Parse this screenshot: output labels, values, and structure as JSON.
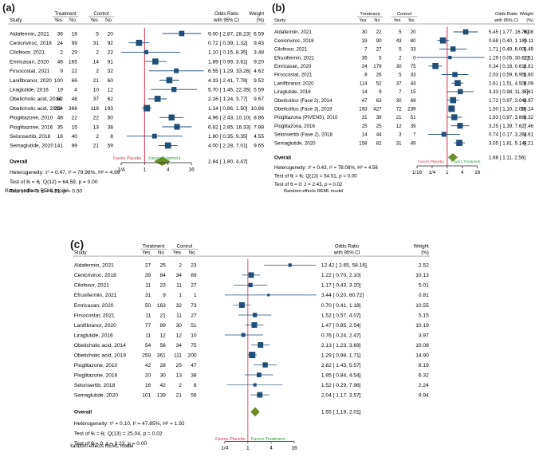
{
  "labels": {
    "study": "Study",
    "treatment": "Treatment",
    "control": "Control",
    "yes": "Yes",
    "no": "No",
    "odds_ratio": "Odds Ratio",
    "with_ci": "with 95% CI",
    "weight": "Weight",
    "weight_unit": "(%)",
    "overall": "Overall",
    "favors_placebo": "Favors Placebo",
    "favors_treatment": "Favors Treatment",
    "model": "Random-effects REML model"
  },
  "colors": {
    "box": "#1f4e79",
    "diamond": "#6b8e23",
    "null_line": "#d9304a",
    "placebo_text": "#d9304a",
    "treatment_text": "#2e9b3a"
  },
  "chart_data": [
    {
      "panel": "(a)",
      "type": "forest",
      "x_scale": "log",
      "xticks": [
        0.25,
        1,
        4,
        16
      ],
      "xtick_labels": [
        "1/4",
        "1",
        "4",
        "16"
      ],
      "xlim": [
        0.25,
        34
      ],
      "studies": [
        {
          "study": "Aldafermin, 2021",
          "t_yes": 36,
          "t_no": 16,
          "c_yes": 5,
          "c_no": 20,
          "or": 9.0,
          "lo": 2.87,
          "hi": 28.23,
          "or_text": "9.00 [ 2.87, 28.23]",
          "weight": "6.59"
        },
        {
          "study": "Cenicriviroc, 2018",
          "t_yes": 24,
          "t_no": 99,
          "c_yes": 31,
          "c_no": 92,
          "or": 0.72,
          "lo": 0.39,
          "hi": 1.32,
          "or_text": "0.72 [ 0.39, 1.32]",
          "weight": "9.43"
        },
        {
          "study": "Cilofexor, 2021",
          "t_yes": 2,
          "t_no": 29,
          "c_yes": 2,
          "c_no": 22,
          "or": 1.1,
          "lo": 0.15,
          "hi": 8.35,
          "or_text": "1.10 [ 0.15, 8.35]",
          "weight": "3.48"
        },
        {
          "study": "Emricasan, 2020",
          "t_yes": 48,
          "t_no": 165,
          "c_yes": 14,
          "c_no": 91,
          "or": 1.89,
          "lo": 0.99,
          "hi": 3.61,
          "or_text": "1.89 [ 0.99, 3.61]",
          "weight": "9.20"
        },
        {
          "study": "Firsocostat, 2021",
          "t_yes": 9,
          "t_no": 22,
          "c_yes": 2,
          "c_no": 32,
          "or": 6.55,
          "lo": 1.29,
          "hi": 33.26,
          "or_text": "6.55 [ 1.29, 33.26]",
          "weight": "4.62"
        },
        {
          "study": "Lanifibranor, 2020",
          "t_yes": 100,
          "t_no": 66,
          "c_yes": 21,
          "c_no": 60,
          "or": 4.33,
          "lo": 2.41,
          "hi": 7.78,
          "or_text": "4.33 [ 2.41, 7.78]",
          "weight": "9.52"
        },
        {
          "study": "Liraglutide, 2016",
          "t_yes": 19,
          "t_no": 4,
          "c_yes": 10,
          "c_no": 12,
          "or": 5.7,
          "lo": 1.45,
          "hi": 22.35,
          "or_text": "5.70 [ 1.45, 22.35]",
          "weight": "5.59"
        },
        {
          "study": "Obeticholic acid, 2014",
          "t_yes": 62,
          "t_no": 48,
          "c_yes": 37,
          "c_no": 62,
          "or": 2.16,
          "lo": 1.24,
          "hi": 3.77,
          "or_text": "2.16 [ 1.24, 3.77]",
          "weight": "9.67"
        },
        {
          "study": "Obeticholic acid, 2019",
          "t_yes": 254,
          "t_no": 366,
          "c_yes": 118,
          "c_no": 193,
          "or": 1.14,
          "lo": 0.86,
          "hi": 1.5,
          "or_text": "1.14 [ 0.86, 1.50]",
          "weight": "10.86"
        },
        {
          "study": "Pioglitazone, 2010",
          "t_yes": 48,
          "t_no": 22,
          "c_yes": 22,
          "c_no": 50,
          "or": 4.96,
          "lo": 2.43,
          "hi": 10.1,
          "or_text": "4.96 [ 2.43, 10.10]",
          "weight": "8.86"
        },
        {
          "study": "Pioglitazone, 2016",
          "t_yes": 35,
          "t_no": 15,
          "c_yes": 13,
          "c_no": 38,
          "or": 6.82,
          "lo": 2.85,
          "hi": 16.33,
          "or_text": "6.82 [ 2.85, 16.33]",
          "weight": "7.98"
        },
        {
          "study": "Selonsertib, 2018",
          "t_yes": 18,
          "t_no": 40,
          "c_yes": 2,
          "c_no": 8,
          "or": 1.8,
          "lo": 0.35,
          "hi": 9.35,
          "or_text": "1.80 [ 0.35, 9.35]",
          "weight": "4.55"
        },
        {
          "study": "Semaglutide, 2020",
          "t_yes": 141,
          "t_no": 99,
          "c_yes": 21,
          "c_no": 59,
          "or": 4.0,
          "lo": 2.28,
          "hi": 7.01,
          "or_text": "4.00 [ 2.28, 7.01]",
          "weight": "9.65"
        }
      ],
      "overall": {
        "or": 2.84,
        "lo": 1.8,
        "hi": 4.47,
        "or_text": "2.84 [ 1.80, 4.47]"
      },
      "heterogeneity": "Heterogeneity: τ² = 0.47, I² = 79.98%, H² = 4.99",
      "test_theta_i": "Test of θᵢ = θⱼ: Q(12) = 64.59, p = 0.00",
      "test_theta_0": "Test of θ = 0: z = 4.51, p = 0.00"
    },
    {
      "panel": "(b)",
      "type": "forest",
      "x_scale": "log",
      "xticks": [
        0.0625,
        0.25,
        1,
        4,
        16
      ],
      "xtick_labels": [
        "1/16",
        "1/4",
        "1",
        "4",
        "16"
      ],
      "xlim": [
        0.0625,
        34
      ],
      "studies": [
        {
          "study": "Aldafermin, 2021",
          "t_yes": 30,
          "t_no": 22,
          "c_yes": 5,
          "c_no": 20,
          "or": 5.45,
          "lo": 1.77,
          "hi": 16.78,
          "or_text": "5.45 [ 1.77, 16.78]",
          "weight": "6.08"
        },
        {
          "study": "Cenicriviroc, 2018",
          "t_yes": 33,
          "t_no": 90,
          "c_yes": 43,
          "c_no": 80,
          "or": 0.68,
          "lo": 0.4,
          "hi": 1.18,
          "or_text": "0.68 [ 0.40, 1.18]",
          "weight": "9.11"
        },
        {
          "study": "Cilofexor, 2021",
          "t_yes": 7,
          "t_no": 27,
          "c_yes": 5,
          "c_no": 33,
          "or": 1.71,
          "lo": 0.49,
          "hi": 6.0,
          "or_text": "1.71 [ 0.49, 6.00]",
          "weight": "5.49"
        },
        {
          "study": "Efruxifermin, 2021",
          "t_yes": 35,
          "t_no": 5,
          "c_yes": 2,
          "c_no": 0,
          "or": 1.29,
          "lo": 0.05,
          "hi": 30.62,
          "or_text": "1.29 [ 0.05, 30.62]",
          "weight": "1.51"
        },
        {
          "study": "Emricasan, 2020",
          "t_yes": 24,
          "t_no": 179,
          "c_yes": 30,
          "c_no": 75,
          "or": 0.34,
          "lo": 0.18,
          "hi": 0.61,
          "or_text": "0.34 [ 0.18, 0.61]",
          "weight": "8.81"
        },
        {
          "study": "Firsocostat, 2021",
          "t_yes": 8,
          "t_no": 26,
          "c_yes": 5,
          "c_no": 33,
          "or": 2.03,
          "lo": 0.59,
          "hi": 6.95,
          "or_text": "2.03 [ 0.59, 6.95]",
          "weight": "5.60"
        },
        {
          "study": "Lanifibranor, 2020",
          "t_yes": 114,
          "t_no": 52,
          "c_yes": 37,
          "c_no": 44,
          "or": 2.61,
          "lo": 1.51,
          "hi": 4.5,
          "or_text": "2.61 [ 1.51, 4.50]",
          "weight": "9.09"
        },
        {
          "study": "Liraglutide, 2016",
          "t_yes": 14,
          "t_no": 9,
          "c_yes": 7,
          "c_no": 15,
          "or": 3.33,
          "lo": 0.98,
          "hi": 11.37,
          "or_text": "3.33 [ 0.98, 11.37]",
          "weight": "5.61"
        },
        {
          "study": "Obeticólico (Fase 2), 2014",
          "t_yes": 47,
          "t_no": 63,
          "c_yes": 30,
          "c_no": 69,
          "or": 1.72,
          "lo": 0.97,
          "hi": 3.04,
          "or_text": "1.72 [ 0.97, 3.04]",
          "weight": "8.97"
        },
        {
          "study": "Obeticólico (Fase 3), 2019",
          "t_yes": 193,
          "t_no": 427,
          "c_yes": 72,
          "c_no": 239,
          "or": 1.5,
          "lo": 1.1,
          "hi": 2.05,
          "or_text": "1.50 [ 1.10, 2.05]",
          "weight": "10.14"
        },
        {
          "study": "Pioglitazona (PIVENS), 2010",
          "t_yes": 31,
          "t_no": 39,
          "c_yes": 21,
          "c_no": 51,
          "or": 1.93,
          "lo": 0.97,
          "hi": 3.86,
          "or_text": "1.93 [ 0.97, 3.86]",
          "weight": "8.32"
        },
        {
          "study": "Pioglitazona, 2016",
          "t_yes": 25,
          "t_no": 25,
          "c_yes": 12,
          "c_no": 39,
          "or": 3.25,
          "lo": 1.39,
          "hi": 7.62,
          "or_text": "3.25 [ 1.39, 7.62]",
          "weight": "7.46"
        },
        {
          "study": "Selonsertib (Fase 2), 2018",
          "t_yes": 14,
          "t_no": 44,
          "c_yes": 3,
          "c_no": 7,
          "or": 0.74,
          "lo": 0.17,
          "hi": 3.26,
          "or_text": "0.74 [ 0.17, 3.26]",
          "weight": "4.61"
        },
        {
          "study": "Semaglutide, 2020",
          "t_yes": 158,
          "t_no": 82,
          "c_yes": 31,
          "c_no": 49,
          "or": 3.05,
          "lo": 1.81,
          "hi": 5.14,
          "or_text": "3.05 [ 1.81, 5.14]",
          "weight": "9.21"
        }
      ],
      "overall": {
        "or": 1.68,
        "lo": 1.11,
        "hi": 2.56,
        "or_text": "1.68 [ 1.11, 2.56]"
      },
      "heterogeneity": "Heterogeneity: τ² = 0.43, I² = 78.08%, H² = 4.56",
      "test_theta_i": "Test of θᵢ = θⱼ: Q(13) = 54.51, p = 0.00",
      "test_theta_0": "Test of θ = 0: z = 2.43, p = 0.02"
    },
    {
      "panel": "(c)",
      "type": "forest",
      "x_scale": "log",
      "xticks": [
        0.25,
        1,
        4,
        16
      ],
      "xtick_labels": [
        "1/4",
        "1",
        "4",
        "16"
      ],
      "xlim": [
        0.25,
        64
      ],
      "studies": [
        {
          "study": "Aldafermin, 2021",
          "t_yes": 27,
          "t_no": 25,
          "c_yes": 2,
          "c_no": 23,
          "or": 12.42,
          "lo": 2.65,
          "hi": 58.16,
          "or_text": "12.42 [ 2.65, 58.16]",
          "weight": "2.52"
        },
        {
          "study": "Cenicriviroc, 2018",
          "t_yes": 39,
          "t_no": 84,
          "c_yes": 34,
          "c_no": 89,
          "or": 1.22,
          "lo": 0.7,
          "hi": 2.1,
          "or_text": "1.22 [ 0.70, 2.10]",
          "weight": "10.13"
        },
        {
          "study": "Cilofexor, 2021",
          "t_yes": 11,
          "t_no": 23,
          "c_yes": 11,
          "c_no": 27,
          "or": 1.17,
          "lo": 0.43,
          "hi": 3.2,
          "or_text": "1.17 [ 0.43, 3.20]",
          "weight": "5.01"
        },
        {
          "study": "Efruxifermin, 2021",
          "t_yes": 31,
          "t_no": 9,
          "c_yes": 1,
          "c_no": 1,
          "or": 3.44,
          "lo": 0.2,
          "hi": 60.72,
          "or_text": "3.44 [ 0.20, 60.72]",
          "weight": "0.81"
        },
        {
          "study": "Emricasan, 2020",
          "t_yes": 50,
          "t_no": 163,
          "c_yes": 32,
          "c_no": 73,
          "or": 0.7,
          "lo": 0.41,
          "hi": 1.18,
          "or_text": "0.70 [ 0.41, 1.18]",
          "weight": "10.55"
        },
        {
          "study": "Firsocostat, 2021",
          "t_yes": 11,
          "t_no": 21,
          "c_yes": 11,
          "c_no": 27,
          "or": 1.52,
          "lo": 0.57,
          "hi": 4.07,
          "or_text": "1.52 [ 0.57, 4.07]",
          "weight": "5.15"
        },
        {
          "study": "Lanifibranor, 2020",
          "t_yes": 77,
          "t_no": 89,
          "c_yes": 30,
          "c_no": 51,
          "or": 1.47,
          "lo": 0.85,
          "hi": 2.54,
          "or_text": "1.47 [ 0.85, 2.54]",
          "weight": "10.19"
        },
        {
          "study": "Liraglutide, 2016",
          "t_yes": 11,
          "t_no": 12,
          "c_yes": 12,
          "c_no": 10,
          "or": 0.76,
          "lo": 0.24,
          "hi": 2.47,
          "or_text": "0.76 [ 0.24, 2.47]",
          "weight": "3.97"
        },
        {
          "study": "Obeticholic acid, 2014",
          "t_yes": 54,
          "t_no": 56,
          "c_yes": 34,
          "c_no": 75,
          "or": 2.13,
          "lo": 1.23,
          "hi": 3.69,
          "or_text": "2.13 [ 1.23, 3.69]",
          "weight": "10.08"
        },
        {
          "study": "Obeticholic acid, 2019",
          "t_yes": 259,
          "t_no": 361,
          "c_yes": 111,
          "c_no": 200,
          "or": 1.29,
          "lo": 0.98,
          "hi": 1.71,
          "or_text": "1.29 [ 0.98, 1.71]",
          "weight": "14.90"
        },
        {
          "study": "Pioglitazone, 2010",
          "t_yes": 42,
          "t_no": 28,
          "c_yes": 25,
          "c_no": 47,
          "or": 2.82,
          "lo": 1.43,
          "hi": 5.57,
          "or_text": "2.82 [ 1.43, 5.57]",
          "weight": "8.19"
        },
        {
          "study": "Pioglitazone, 2016",
          "t_yes": 20,
          "t_no": 30,
          "c_yes": 13,
          "c_no": 38,
          "or": 1.95,
          "lo": 0.84,
          "hi": 4.54,
          "or_text": "1.95 [ 0.84, 4.54]",
          "weight": "6.32"
        },
        {
          "study": "Selonsertib, 2018",
          "t_yes": 16,
          "t_no": 42,
          "c_yes": 2,
          "c_no": 8,
          "or": 1.52,
          "lo": 0.29,
          "hi": 7.96,
          "or_text": "1.52 [ 0.29, 7.96]",
          "weight": "2.24"
        },
        {
          "study": "Semaglutide, 2020",
          "t_yes": 101,
          "t_no": 139,
          "c_yes": 21,
          "c_no": 59,
          "or": 2.04,
          "lo": 1.17,
          "hi": 3.57,
          "or_text": "2.04 [ 1.17, 3.57]",
          "weight": "9.94"
        }
      ],
      "overall": {
        "or": 1.55,
        "lo": 1.19,
        "hi": 2.01,
        "or_text": "1.55 [ 1.19, 2.01]"
      },
      "heterogeneity": "Heterogeneity: τ² = 0.10, I² = 47.85%, H² = 1.92",
      "test_theta_i": "Test of θᵢ = θⱼ: Q(13) = 25.04, p = 0.02",
      "test_theta_0": "Test of θ = 0: z = 3.23, p = 0.00"
    }
  ]
}
